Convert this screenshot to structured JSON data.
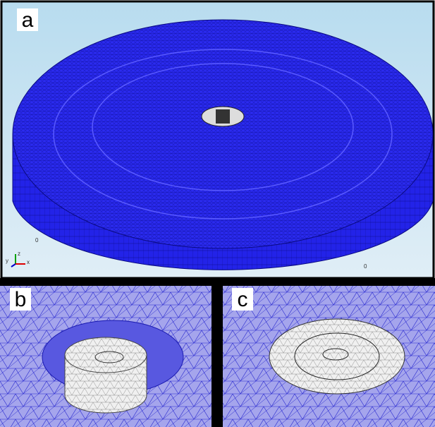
{
  "panels": [
    {
      "label": "a"
    },
    {
      "label": "b"
    },
    {
      "label": "c"
    }
  ],
  "axes": {
    "z": "z",
    "y": "y",
    "x": "x",
    "origin_labels": [
      "0",
      "0"
    ]
  }
}
